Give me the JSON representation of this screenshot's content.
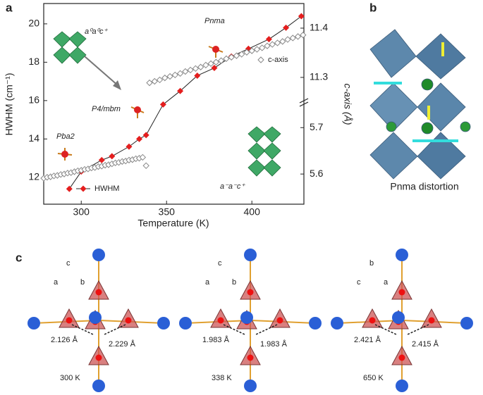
{
  "chart_data": {
    "type": "line",
    "x_label": "Temperature (K)",
    "y_label": "HWHM (cm⁻¹)",
    "y2_label": "c-axis (Å)",
    "xlim": [
      278,
      430.5
    ],
    "xticks": [
      300,
      350,
      400
    ],
    "ylim": [
      10.6,
      21.06
    ],
    "yticks": [
      12,
      14,
      16,
      18,
      20
    ],
    "y2_segments": [
      {
        "lim": [
          5.535,
          5.752
        ],
        "ticks": [
          5.6,
          5.7
        ]
      },
      {
        "lim": [
          11.257,
          11.45
        ],
        "ticks": [
          11.3,
          11.4
        ]
      }
    ],
    "annotations": [
      "a⁰a⁰c⁺",
      "Pnma",
      "P4/mbm",
      "Pba2",
      "a⁻a⁻c⁺"
    ],
    "series": [
      {
        "name": "HWHM",
        "color": "#e41e1e",
        "marker": "diamond",
        "x": [
          293,
          300,
          312,
          318,
          328,
          334,
          338,
          348,
          358,
          368,
          378,
          388,
          398,
          410,
          420,
          429
        ],
        "values": [
          11.4,
          12.3,
          12.9,
          13.1,
          13.6,
          14.0,
          14.2,
          15.8,
          16.5,
          17.3,
          17.7,
          18.3,
          18.7,
          19.2,
          19.8,
          20.4
        ]
      },
      {
        "name": "c-axis",
        "color": "#888888",
        "marker": "open-diamond",
        "axis": "y2",
        "x": [
          278,
          280,
          282,
          284,
          286,
          288,
          290,
          292,
          294,
          296,
          298,
          300,
          302,
          304,
          306,
          308,
          310,
          312,
          314,
          316,
          318,
          320,
          322,
          324,
          326,
          328,
          330,
          332,
          334,
          336,
          338,
          340,
          343,
          346,
          349,
          352,
          355,
          358,
          361,
          364,
          367,
          370,
          373,
          376,
          379,
          382,
          385,
          388,
          391,
          394,
          397,
          400,
          403,
          406,
          409,
          412,
          415,
          418,
          421,
          424,
          427,
          430
        ],
        "values": [
          5.591,
          5.593,
          5.594,
          5.596,
          5.597,
          5.599,
          5.6,
          5.602,
          5.603,
          5.605,
          5.607,
          5.608,
          5.61,
          5.611,
          5.613,
          5.614,
          5.616,
          5.617,
          5.619,
          5.62,
          5.622,
          5.624,
          5.625,
          5.627,
          5.628,
          5.63,
          5.631,
          5.633,
          5.634,
          5.636,
          5.618,
          11.289,
          11.292,
          11.295,
          11.299,
          11.302,
          11.305,
          11.308,
          11.312,
          11.315,
          11.318,
          11.321,
          11.325,
          11.328,
          11.331,
          11.334,
          11.338,
          11.341,
          11.344,
          11.347,
          11.351,
          11.354,
          11.357,
          11.36,
          11.364,
          11.367,
          11.37,
          11.373,
          11.377,
          11.38,
          11.383,
          11.386
        ]
      }
    ]
  },
  "figure": {
    "panel_labels": [
      "a",
      "b",
      "c"
    ],
    "panel_b_caption": "Pnma distortion",
    "panel_c": [
      {
        "axes": [
          "c",
          "a",
          "b"
        ],
        "distances": [
          "2.126 Å",
          "2.229 Å"
        ],
        "temperature": "300 K"
      },
      {
        "axes": [
          "c",
          "a",
          "b"
        ],
        "distances": [
          "1.983 Å",
          "1.983 Å"
        ],
        "temperature": "338 K"
      },
      {
        "axes": [
          "b",
          "c",
          "a"
        ],
        "distances": [
          "2.421 Å",
          "2.415 Å"
        ],
        "temperature": "650 K"
      }
    ]
  }
}
